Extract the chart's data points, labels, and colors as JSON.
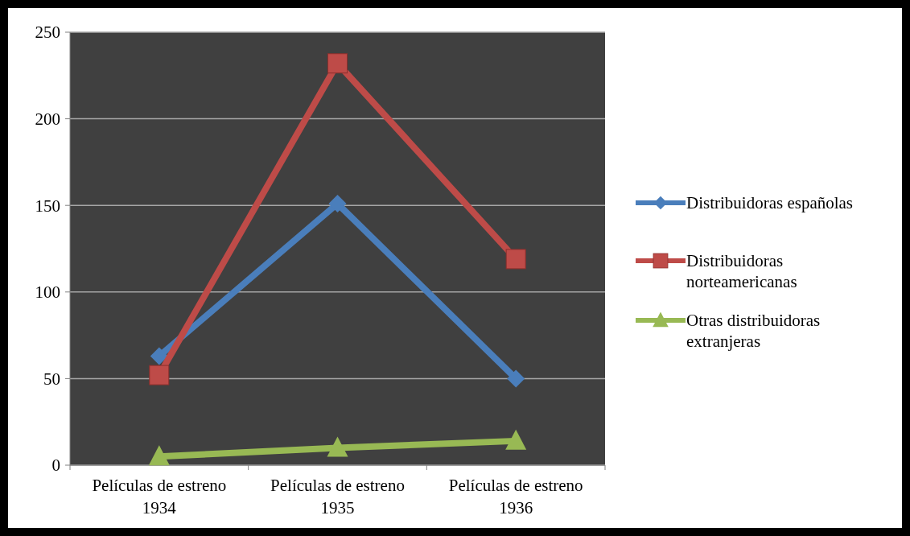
{
  "chart_data": {
    "type": "line",
    "categories": [
      "Películas de estreno 1934",
      "Películas de estreno 1935",
      "Películas de estreno 1936"
    ],
    "series": [
      {
        "name": "Distribuidoras españolas",
        "color": "#4a7ebb",
        "values": [
          63,
          151,
          50
        ],
        "marker": "diamond"
      },
      {
        "name": "Distribuidoras norteamericanas",
        "color": "#be4b48",
        "values": [
          52,
          232,
          119
        ],
        "marker": "square"
      },
      {
        "name": "Otras distribuidoras extranjeras",
        "color": "#98b954",
        "values": [
          5,
          10,
          14
        ],
        "marker": "triangle"
      }
    ],
    "ylim": [
      0,
      250
    ],
    "yticks": [
      0,
      50,
      100,
      150,
      200,
      250
    ],
    "grid": "y",
    "legend": "right"
  }
}
